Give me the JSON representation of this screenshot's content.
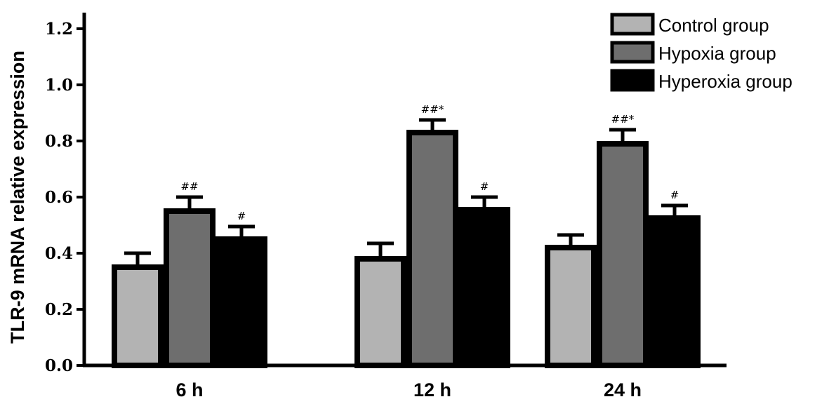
{
  "chart_data": {
    "type": "bar",
    "ylabel": "TLR-9 mRNA relative expression",
    "xlabel": "",
    "ylim": [
      0,
      1.2
    ],
    "yticks": [
      "0.0",
      "0.2",
      "0.4",
      "0.6",
      "0.8",
      "1.0",
      "1.2"
    ],
    "categories": [
      "6 h",
      "12 h",
      "24 h"
    ],
    "series": [
      {
        "name": "Control group",
        "color": "#b3b3b3",
        "values": [
          0.35,
          0.38,
          0.42
        ],
        "errors": [
          0.05,
          0.055,
          0.045
        ],
        "annotations": [
          "",
          "",
          ""
        ]
      },
      {
        "name": "Hypoxia group",
        "color": "#6e6e6e",
        "values": [
          0.55,
          0.83,
          0.79
        ],
        "errors": [
          0.05,
          0.045,
          0.05
        ],
        "annotations": [
          "##",
          "##*",
          "##*"
        ]
      },
      {
        "name": "Hyperoxia group",
        "color": "#000000",
        "values": [
          0.45,
          0.555,
          0.525
        ],
        "errors": [
          0.045,
          0.045,
          0.045
        ],
        "annotations": [
          "#",
          "#",
          "#"
        ]
      }
    ],
    "legend_position": "top-right"
  }
}
